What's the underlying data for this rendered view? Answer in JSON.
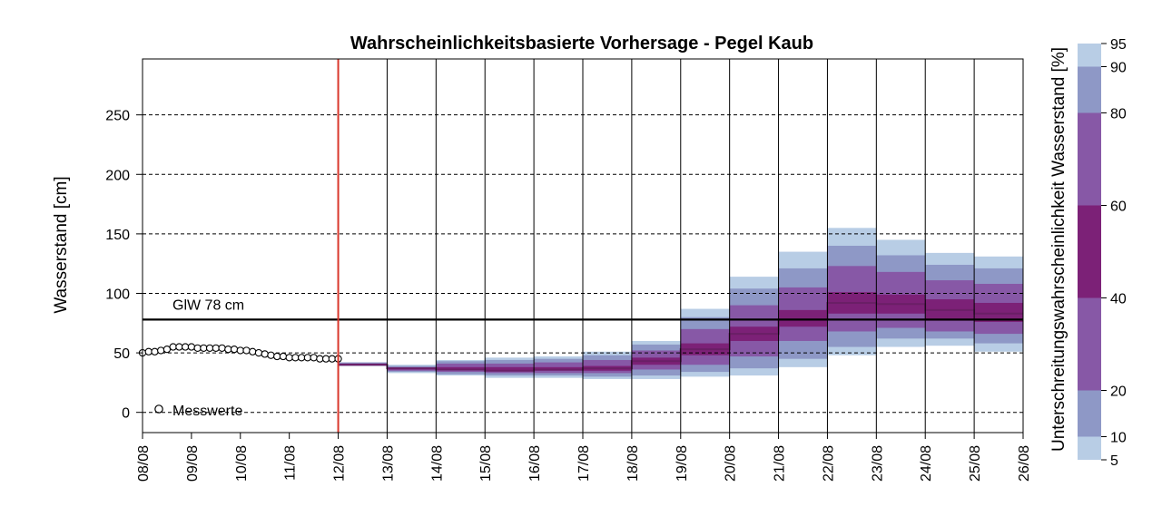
{
  "chart_data": {
    "type": "area",
    "title": "Wahrscheinlichkeitsbasierte Vorhersage - Pegel  Kaub",
    "ylabel": "Wasserstand [cm]",
    "xlabel": "",
    "ylim": [
      -17,
      297
    ],
    "yticks": [
      0,
      50,
      100,
      150,
      200,
      250
    ],
    "x_dates": [
      "08/08",
      "09/08",
      "10/08",
      "11/08",
      "12/08",
      "13/08",
      "14/08",
      "15/08",
      "16/08",
      "17/08",
      "18/08",
      "19/08",
      "20/08",
      "21/08",
      "22/08",
      "23/08",
      "24/08",
      "25/08",
      "26/08"
    ],
    "forecast_start": "12/08",
    "grid": "horizontal dashed at y ticks, vertical solid at forecast days",
    "reference_line": {
      "label": "GlW 78 cm",
      "value": 78
    },
    "legend": {
      "measured_label": "Messwerte",
      "placement": "bottom-left"
    },
    "measured": {
      "name": "Messwerte",
      "start": "08/08",
      "step_hours": 3,
      "values": [
        50,
        51,
        51,
        52,
        53,
        55,
        55,
        55,
        55,
        54,
        54,
        54,
        54,
        54,
        53,
        53,
        52,
        52,
        51,
        50,
        49,
        48,
        47,
        47,
        46,
        46,
        46,
        46,
        46,
        45,
        45,
        45,
        45
      ]
    },
    "forecast": {
      "percentiles": [
        5,
        10,
        20,
        40,
        60,
        80,
        90,
        95
      ],
      "days": [
        "12/08",
        "13/08",
        "14/08",
        "15/08",
        "16/08",
        "17/08",
        "18/08",
        "19/08",
        "20/08",
        "21/08",
        "22/08",
        "23/08",
        "24/08",
        "25/08"
      ],
      "quantiles": [
        [
          39,
          39,
          40,
          40,
          41,
          41,
          42,
          42
        ],
        [
          33,
          34,
          35,
          36,
          37,
          38,
          39,
          40
        ],
        [
          31,
          32,
          34,
          36,
          38,
          41,
          43,
          44
        ],
        [
          29,
          31,
          33,
          35,
          38,
          41,
          44,
          46
        ],
        [
          29,
          31,
          33,
          35,
          38,
          42,
          45,
          47
        ],
        [
          28,
          30,
          33,
          35,
          39,
          44,
          48,
          51
        ],
        [
          28,
          31,
          36,
          40,
          46,
          52,
          57,
          60
        ],
        [
          30,
          34,
          40,
          48,
          58,
          70,
          80,
          87
        ],
        [
          31,
          37,
          47,
          60,
          72,
          90,
          104,
          114
        ],
        [
          38,
          45,
          60,
          72,
          86,
          105,
          121,
          135
        ],
        [
          48,
          55,
          68,
          83,
          101,
          123,
          140,
          155
        ],
        [
          55,
          62,
          71,
          83,
          99,
          118,
          132,
          145
        ],
        [
          56,
          62,
          68,
          77,
          95,
          111,
          124,
          134
        ],
        [
          51,
          58,
          66,
          76,
          92,
          108,
          121,
          131
        ]
      ],
      "median": [
        40,
        37,
        36,
        35,
        36,
        37,
        43,
        53,
        66,
        78,
        92,
        91,
        86,
        83
      ]
    },
    "colorbar": {
      "label": "Unterschreitungswahrscheinlichkeit Wasserstand [%]",
      "ticks": [
        5,
        10,
        20,
        40,
        60,
        80,
        90,
        95
      ],
      "colors": [
        "#b8cde5",
        "#8e98c6",
        "#8758a6",
        "#7c2177",
        "#8758a6",
        "#8e98c6",
        "#b8cde5"
      ]
    },
    "colors": {
      "outer_band": "#b8cde5",
      "mid_band": "#8e98c6",
      "inner_band": "#8758a6",
      "core_band": "#7c2177",
      "forecast_start_line": "#d9362b",
      "median_line": "#6a1f66",
      "reference_line": "#000000"
    }
  }
}
